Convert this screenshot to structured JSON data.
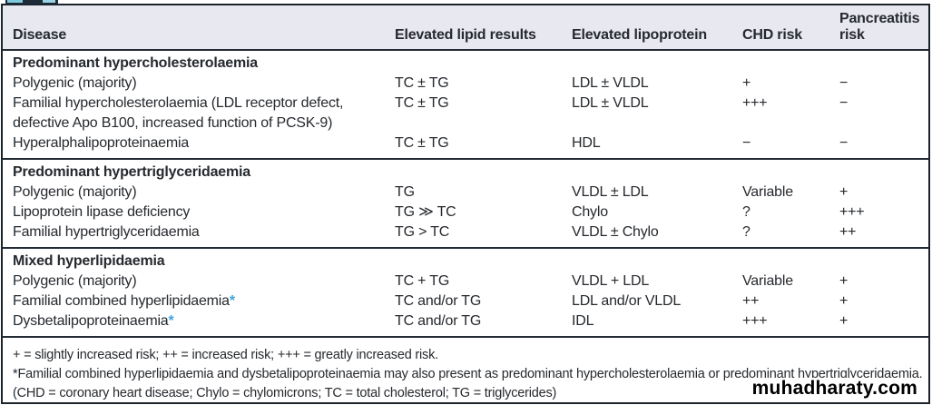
{
  "watermark": "muhadharaty.com",
  "colors": {
    "header_background": "#e7e8f0",
    "border": "#1c232b",
    "text": "#26292e",
    "asterisk_blue": "#3fa3d9"
  },
  "table": {
    "asterisk_symbol": "*",
    "columns": [
      "Disease",
      "Elevated lipid results",
      "Elevated lipoprotein",
      "CHD risk",
      "Pancreatitis risk"
    ],
    "sections": [
      {
        "header": "Predominant hypercholesterolaemia",
        "rows": [
          {
            "disease": "Polygenic (majority)",
            "lipid": "TC ± TG",
            "lipoprotein": "LDL ± VLDL",
            "chd": "+",
            "pancreatitis": "−"
          },
          {
            "disease": "Familial hypercholesterolaemia (LDL receptor defect, defective Apo B100, increased function of PCSK-9)",
            "lipid": "TC ± TG",
            "lipoprotein": "LDL ± VLDL",
            "chd": "+++",
            "pancreatitis": "−"
          },
          {
            "disease": "Hyperalphalipoproteinaemia",
            "lipid": "TC ± TG",
            "lipoprotein": "HDL",
            "chd": "−",
            "pancreatitis": "−"
          }
        ]
      },
      {
        "header": "Predominant hypertriglyceridaemia",
        "rows": [
          {
            "disease": "Polygenic (majority)",
            "lipid": "TG",
            "lipoprotein": "VLDL ± LDL",
            "chd": "Variable",
            "pancreatitis": "+"
          },
          {
            "disease": "Lipoprotein lipase deficiency",
            "lipid": "TG ≫ TC",
            "lipoprotein": "Chylo",
            "chd": "?",
            "pancreatitis": "+++"
          },
          {
            "disease": "Familial hypertriglyceridaemia",
            "lipid": "TG > TC",
            "lipoprotein": "VLDL ± Chylo",
            "chd": "?",
            "pancreatitis": "++"
          }
        ]
      },
      {
        "header": "Mixed hyperlipidaemia",
        "rows": [
          {
            "disease": "Polygenic (majority)",
            "lipid": "TC + TG",
            "lipoprotein": "VLDL + LDL",
            "chd": "Variable",
            "pancreatitis": "+"
          },
          {
            "disease": "Familial combined hyperlipidaemia",
            "asterisk": true,
            "lipid": "TC and/or TG",
            "lipoprotein": "LDL and/or VLDL",
            "chd": "++",
            "pancreatitis": "+"
          },
          {
            "disease": "Dysbetalipoproteinaemia",
            "asterisk": true,
            "lipid": "TC and/or TG",
            "lipoprotein": "IDL",
            "chd": "+++",
            "pancreatitis": "+"
          }
        ]
      }
    ],
    "footnotes": [
      "+ = slightly increased risk; ++ = increased risk; +++ = greatly increased risk.",
      "*Familial combined hyperlipidaemia and dysbetalipoproteinaemia may also present as predominant hypercholesterolaemia or predominant hypertriglyceridaemia.",
      "(CHD = coronary heart disease; Chylo = chylomicrons; TC = total cholesterol; TG = triglycerides)"
    ]
  }
}
